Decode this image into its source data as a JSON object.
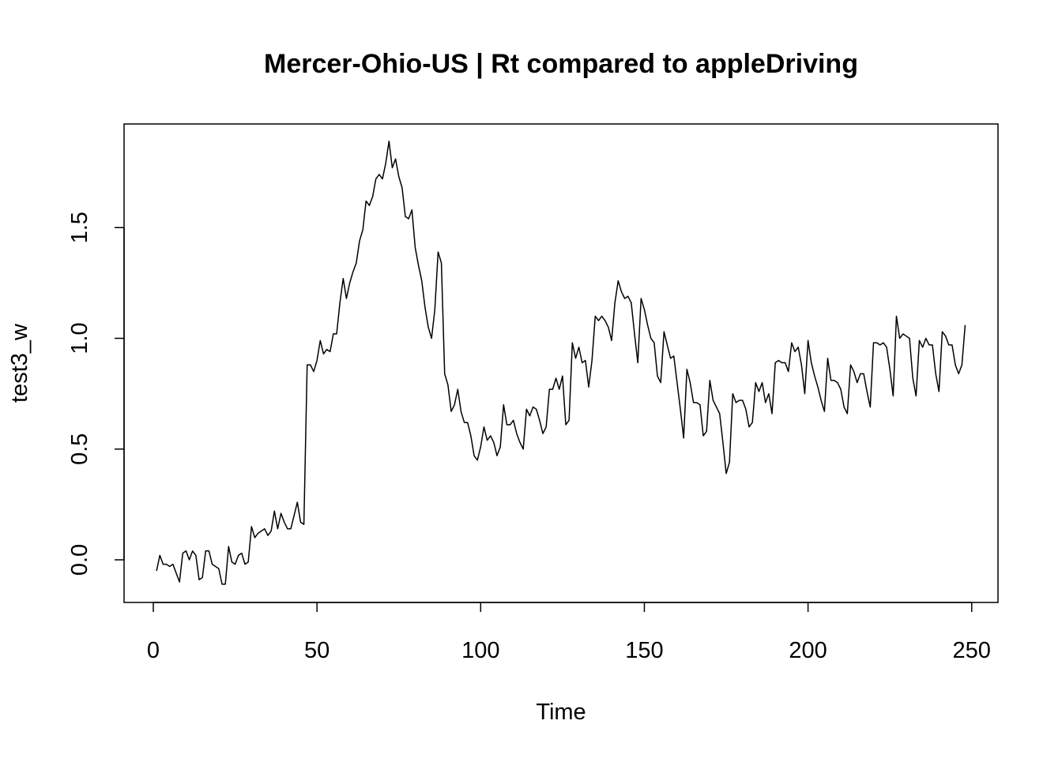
{
  "chart_data": {
    "type": "line",
    "title": "Mercer-Ohio-US | Rt compared to appleDriving",
    "xlabel": "Time",
    "ylabel": "test3_w",
    "xlim": [
      1,
      248
    ],
    "ylim": [
      -0.11,
      1.9
    ],
    "x_ticks": [
      0,
      50,
      100,
      150,
      200,
      250
    ],
    "y_ticks": [
      0.0,
      0.5,
      1.0,
      1.5
    ],
    "x_tick_labels": [
      "0",
      "50",
      "100",
      "150",
      "200",
      "250"
    ],
    "y_tick_labels": [
      "0.0",
      "0.5",
      "1.0",
      "1.5"
    ],
    "grid": false,
    "legend": "none",
    "line_color": "#000000",
    "series": [
      {
        "x_start": 1,
        "x_step": 1,
        "values": [
          -0.05,
          0.02,
          -0.02,
          -0.02,
          -0.03,
          -0.02,
          -0.06,
          -0.1,
          0.03,
          0.04,
          0.0,
          0.04,
          0.02,
          -0.09,
          -0.08,
          0.04,
          0.04,
          -0.02,
          -0.03,
          -0.04,
          -0.11,
          -0.11,
          0.06,
          -0.01,
          -0.02,
          0.02,
          0.03,
          -0.02,
          -0.01,
          0.15,
          0.1,
          0.12,
          0.13,
          0.14,
          0.11,
          0.13,
          0.22,
          0.14,
          0.21,
          0.17,
          0.14,
          0.14,
          0.2,
          0.26,
          0.17,
          0.16,
          0.88,
          0.88,
          0.85,
          0.9,
          0.99,
          0.93,
          0.95,
          0.94,
          1.02,
          1.02,
          1.16,
          1.27,
          1.18,
          1.25,
          1.3,
          1.34,
          1.44,
          1.49,
          1.62,
          1.6,
          1.64,
          1.72,
          1.74,
          1.72,
          1.79,
          1.89,
          1.77,
          1.81,
          1.73,
          1.68,
          1.55,
          1.54,
          1.58,
          1.41,
          1.33,
          1.26,
          1.14,
          1.05,
          1.0,
          1.13,
          1.39,
          1.34,
          0.84,
          0.79,
          0.67,
          0.7,
          0.77,
          0.67,
          0.62,
          0.62,
          0.56,
          0.47,
          0.45,
          0.51,
          0.6,
          0.54,
          0.56,
          0.53,
          0.47,
          0.51,
          0.7,
          0.61,
          0.61,
          0.63,
          0.57,
          0.53,
          0.5,
          0.68,
          0.65,
          0.69,
          0.68,
          0.63,
          0.57,
          0.6,
          0.77,
          0.77,
          0.82,
          0.77,
          0.83,
          0.61,
          0.63,
          0.98,
          0.91,
          0.96,
          0.89,
          0.9,
          0.78,
          0.9,
          1.1,
          1.08,
          1.1,
          1.08,
          1.05,
          0.99,
          1.16,
          1.26,
          1.21,
          1.18,
          1.19,
          1.16,
          1.02,
          0.89,
          1.18,
          1.13,
          1.06,
          1.0,
          0.98,
          0.83,
          0.8,
          1.03,
          0.97,
          0.91,
          0.92,
          0.8,
          0.68,
          0.55,
          0.86,
          0.8,
          0.71,
          0.71,
          0.7,
          0.56,
          0.58,
          0.81,
          0.72,
          0.69,
          0.66,
          0.53,
          0.39,
          0.44,
          0.75,
          0.71,
          0.72,
          0.72,
          0.68,
          0.6,
          0.62,
          0.8,
          0.76,
          0.8,
          0.71,
          0.75,
          0.66,
          0.89,
          0.9,
          0.89,
          0.89,
          0.85,
          0.98,
          0.94,
          0.96,
          0.88,
          0.75,
          0.99,
          0.89,
          0.83,
          0.78,
          0.72,
          0.67,
          0.91,
          0.81,
          0.81,
          0.8,
          0.77,
          0.69,
          0.66,
          0.88,
          0.85,
          0.8,
          0.84,
          0.84,
          0.76,
          0.69,
          0.98,
          0.98,
          0.97,
          0.98,
          0.96,
          0.86,
          0.74,
          1.1,
          1.0,
          1.02,
          1.01,
          1.0,
          0.82,
          0.74,
          0.99,
          0.96,
          1.0,
          0.97,
          0.97,
          0.84,
          0.76,
          1.03,
          1.01,
          0.97,
          0.97,
          0.88,
          0.84,
          0.88,
          1.06
        ]
      }
    ]
  }
}
